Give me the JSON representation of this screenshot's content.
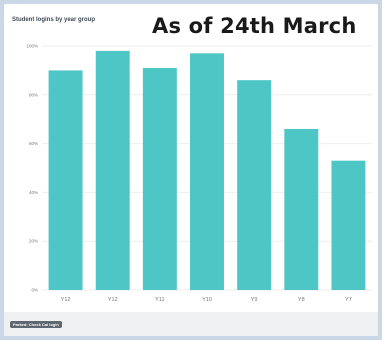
{
  "overlay_text": "As of 24th March",
  "legend_chip": "Parked: Check Cal login",
  "colors": {
    "bar": "#4fc6c6",
    "grid": "#eceef0",
    "axis_text": "#777777",
    "background": "#c9d7e6"
  },
  "chart_data": {
    "type": "bar",
    "title": "Student logins by year group",
    "xlabel": "",
    "ylabel": "",
    "categories": [
      "Y12",
      "Y12",
      "Y11",
      "Y10",
      "Y9",
      "Y8",
      "Y7"
    ],
    "values": [
      90,
      98,
      91,
      97,
      86,
      66,
      53
    ],
    "ylim": [
      0,
      100
    ],
    "yticks": [
      0,
      20,
      40,
      60,
      80,
      100
    ],
    "ytick_labels": [
      "0%",
      "20%",
      "40%",
      "60%",
      "80%",
      "100%"
    ],
    "grid": true
  }
}
